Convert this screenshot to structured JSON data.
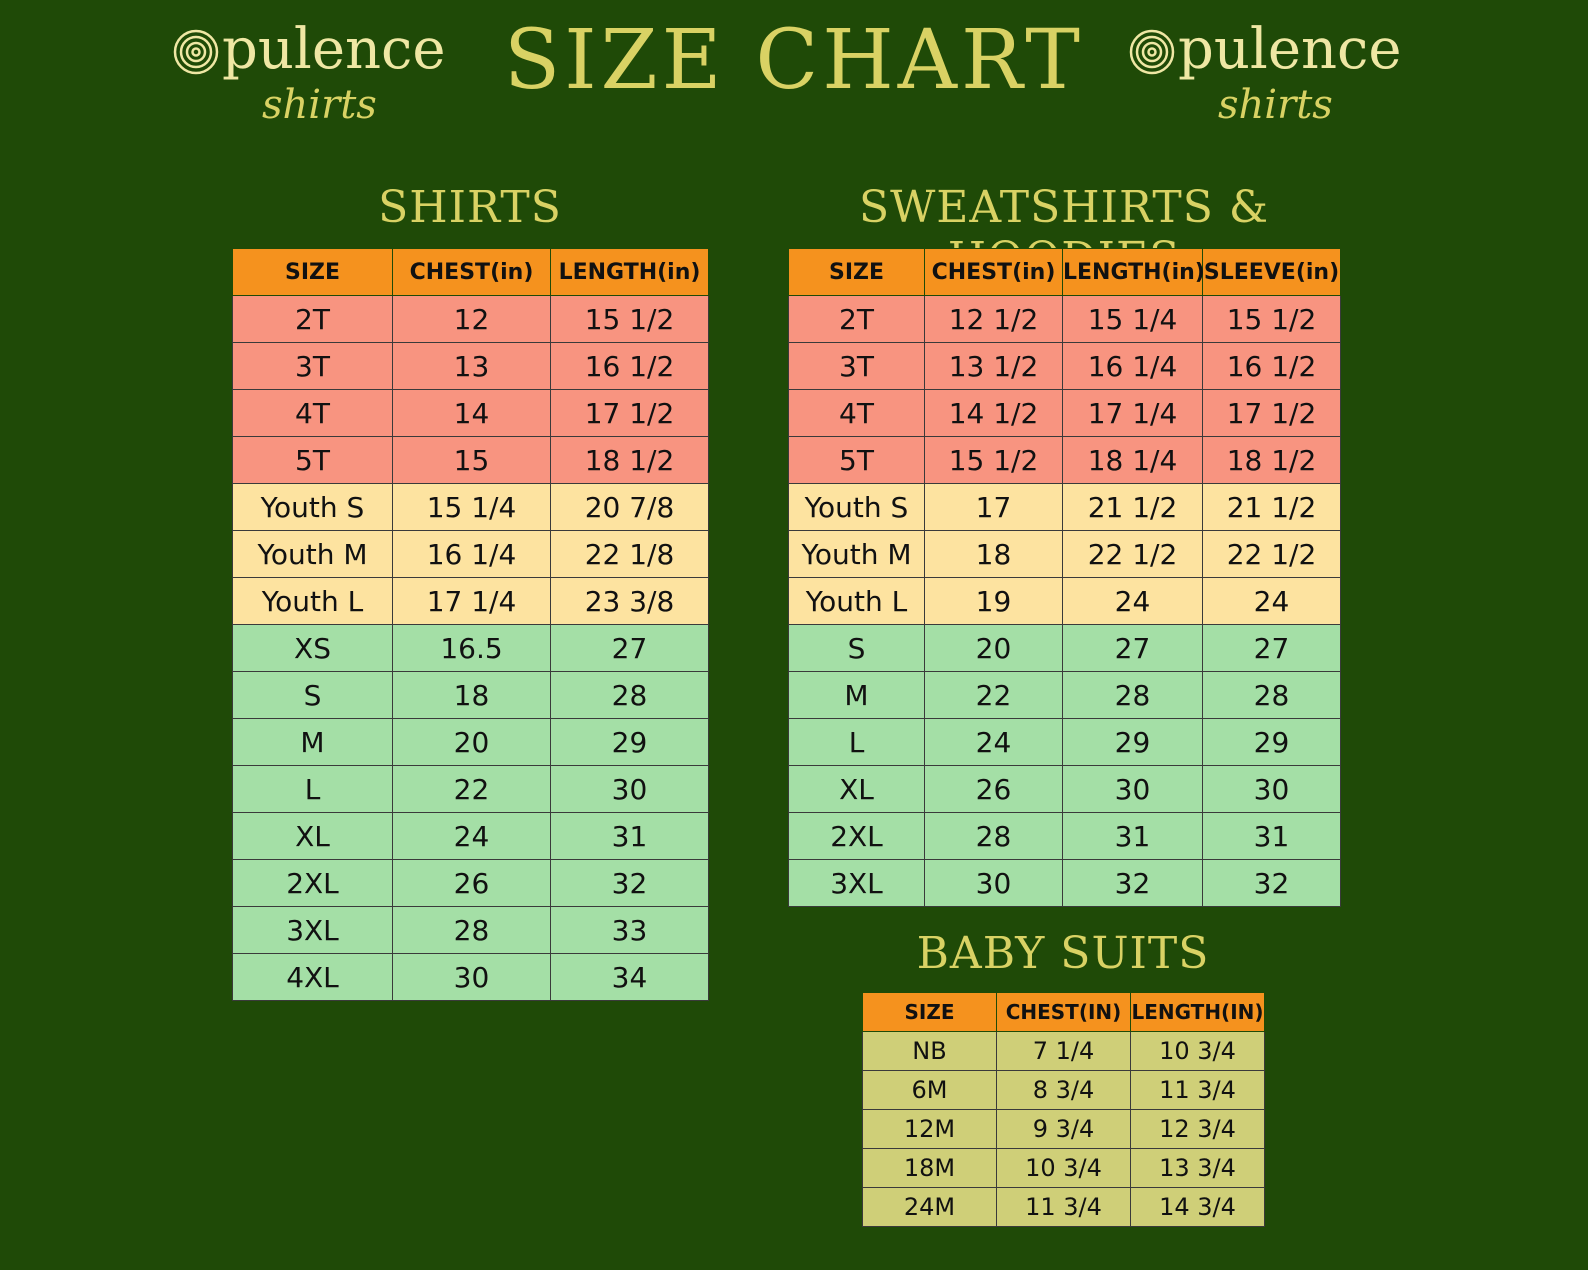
{
  "title": "SIZE CHART",
  "brand": {
    "name": "pulence",
    "tagline": "shirts"
  },
  "colors": {
    "background": "#1f4a07",
    "header": "#f5921e",
    "toddler": "#f89480",
    "youth": "#fde3a0",
    "adult": "#a4dfa6",
    "baby": "#cfcf78",
    "gold": "#d9d264"
  },
  "shirts": {
    "title": "SHIRTS",
    "headers": [
      "SIZE",
      "CHEST(in)",
      "LENGTH(in)"
    ],
    "rows": [
      [
        "2T",
        "12",
        "15 1/2"
      ],
      [
        "3T",
        "13",
        "16 1/2"
      ],
      [
        "4T",
        "14",
        "17 1/2"
      ],
      [
        "5T",
        "15",
        "18 1/2"
      ],
      [
        "Youth S",
        "15 1/4",
        "20 7/8"
      ],
      [
        "Youth M",
        "16 1/4",
        "22 1/8"
      ],
      [
        "Youth L",
        "17 1/4",
        "23 3/8"
      ],
      [
        "XS",
        "16.5",
        "27"
      ],
      [
        "S",
        "18",
        "28"
      ],
      [
        "M",
        "20",
        "29"
      ],
      [
        "L",
        "22",
        "30"
      ],
      [
        "XL",
        "24",
        "31"
      ],
      [
        "2XL",
        "26",
        "32"
      ],
      [
        "3XL",
        "28",
        "33"
      ],
      [
        "4XL",
        "30",
        "34"
      ]
    ]
  },
  "sweatshirts": {
    "title": "SWEATSHIRTS & HOODIES",
    "headers": [
      "SIZE",
      "CHEST(in)",
      "LENGTH(in)",
      "SLEEVE(in)"
    ],
    "rows": [
      [
        "2T",
        "12 1/2",
        "15 1/4",
        "15 1/2"
      ],
      [
        "3T",
        "13 1/2",
        "16 1/4",
        "16 1/2"
      ],
      [
        "4T",
        "14 1/2",
        "17 1/4",
        "17 1/2"
      ],
      [
        "5T",
        "15 1/2",
        "18 1/4",
        "18 1/2"
      ],
      [
        "Youth S",
        "17",
        "21 1/2",
        "21 1/2"
      ],
      [
        "Youth M",
        "18",
        "22 1/2",
        "22 1/2"
      ],
      [
        "Youth L",
        "19",
        "24",
        "24"
      ],
      [
        "S",
        "20",
        "27",
        "27"
      ],
      [
        "M",
        "22",
        "28",
        "28"
      ],
      [
        "L",
        "24",
        "29",
        "29"
      ],
      [
        "XL",
        "26",
        "30",
        "30"
      ],
      [
        "2XL",
        "28",
        "31",
        "31"
      ],
      [
        "3XL",
        "30",
        "32",
        "32"
      ]
    ]
  },
  "baby": {
    "title": "BABY SUITS",
    "headers": [
      "SIZE",
      "CHEST(IN)",
      "LENGTH(IN)"
    ],
    "rows": [
      [
        "NB",
        "7 1/4",
        "10 3/4"
      ],
      [
        "6M",
        "8 3/4",
        "11 3/4"
      ],
      [
        "12M",
        "9 3/4",
        "12 3/4"
      ],
      [
        "18M",
        "10 3/4",
        "13 3/4"
      ],
      [
        "24M",
        "11 3/4",
        "14 3/4"
      ]
    ]
  }
}
